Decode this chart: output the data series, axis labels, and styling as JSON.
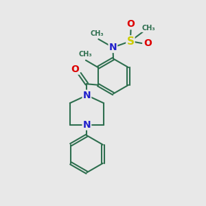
{
  "bg_color": "#e8e8e8",
  "bond_color": "#2d6e4e",
  "atom_colors": {
    "N": "#2020cc",
    "O": "#dd0000",
    "S": "#cccc00"
  },
  "line_width": 1.5,
  "figsize": [
    3.0,
    3.0
  ],
  "dpi": 100,
  "xlim": [
    0,
    10
  ],
  "ylim": [
    0,
    10
  ]
}
